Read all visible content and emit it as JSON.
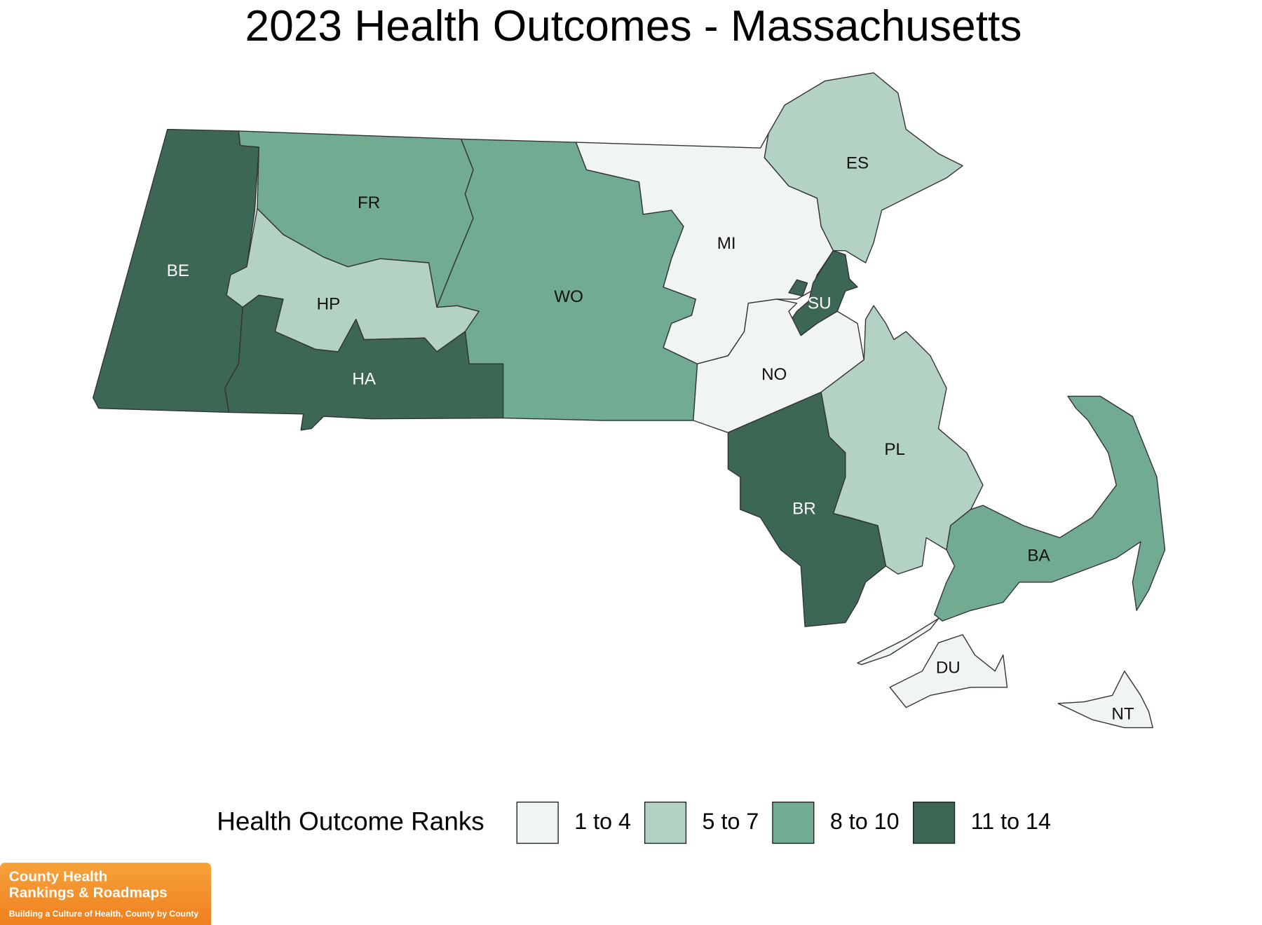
{
  "title": "2023 Health Outcomes - Massachusetts",
  "counties": [
    {
      "label": "BE",
      "color": "#3c6754"
    },
    {
      "label": "FR",
      "color": "#71ab91"
    },
    {
      "label": "HP",
      "color": "#b3d2c4"
    },
    {
      "label": "HA",
      "color": "#3c6754"
    },
    {
      "label": "WO",
      "color": "#71ab91"
    },
    {
      "label": "MI",
      "color": "#f0f5f3"
    },
    {
      "label": "ES",
      "color": "#b3d2c4"
    },
    {
      "label": "SU",
      "color": "#3c6754"
    },
    {
      "label": "NO",
      "color": "#f0f5f3"
    },
    {
      "label": "PL",
      "color": "#b3d2c4"
    },
    {
      "label": "BR",
      "color": "#3c6754"
    },
    {
      "label": "BA",
      "color": "#71ab91"
    },
    {
      "label": "DU",
      "color": "#f0f5f3"
    },
    {
      "label": "NT",
      "color": "#f0f5f3"
    }
  ],
  "legend": {
    "title": "Health Outcome Ranks",
    "items": [
      {
        "label": "1 to 4",
        "color": "#f0f5f3"
      },
      {
        "label": "5 to 7",
        "color": "#b3d2c4"
      },
      {
        "label": "8 to 10",
        "color": "#71ab91"
      },
      {
        "label": "11 to 14",
        "color": "#3c6754"
      }
    ]
  },
  "logo": {
    "line1": "County Health",
    "line2": "Rankings & Roadmaps",
    "tagline": "Building a Culture of Health, County by County"
  }
}
